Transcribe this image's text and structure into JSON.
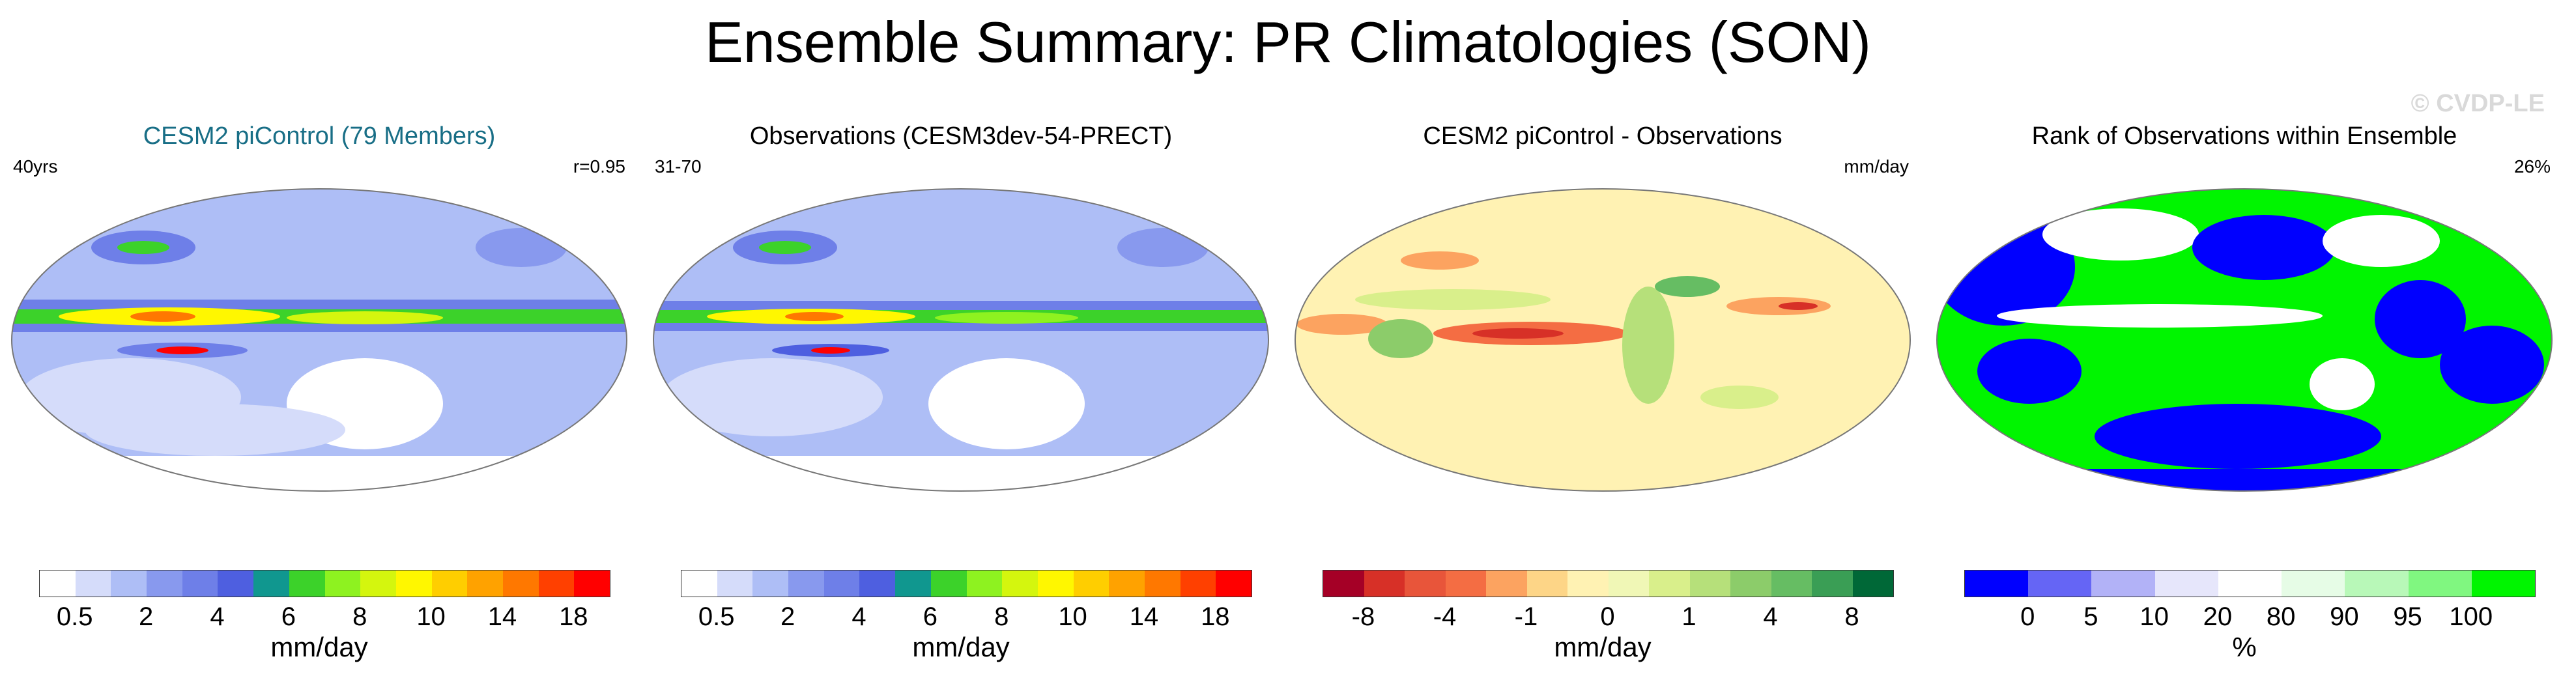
{
  "figure_title": "Ensemble Summary: PR Climatologies (SON)",
  "watermark": "© CVDP-LE",
  "panels": [
    {
      "title": "CESM2 piControl (79 Members)",
      "left_label": "40yrs",
      "right_label": "r=0.95",
      "units": "mm/day",
      "colors": [
        "#ffffff",
        "#d5dcfa",
        "#aebef6",
        "#8899ee",
        "#6e7fe8",
        "#4e5fe0",
        "#10978f",
        "#3cd22a",
        "#8ef220",
        "#d4f60e",
        "#fff700",
        "#ffce00",
        "#ffa200",
        "#ff7800",
        "#ff4000",
        "#ff0000"
      ],
      "tick_labels": [
        "0.5",
        "2",
        "4",
        "6",
        "8",
        "10",
        "14",
        "18"
      ]
    },
    {
      "title": "Observations (CESM3dev-54-PRECT)",
      "left_label": "31-70",
      "right_label": "",
      "units": "mm/day",
      "colors": [
        "#ffffff",
        "#d5dcfa",
        "#aebef6",
        "#8899ee",
        "#6e7fe8",
        "#4e5fe0",
        "#10978f",
        "#3cd22a",
        "#8ef220",
        "#d4f60e",
        "#fff700",
        "#ffce00",
        "#ffa200",
        "#ff7800",
        "#ff4000",
        "#ff0000"
      ],
      "tick_labels": [
        "0.5",
        "2",
        "4",
        "6",
        "8",
        "10",
        "14",
        "18"
      ]
    },
    {
      "title": "CESM2 piControl - Observations",
      "left_label": "",
      "right_label": "mm/day",
      "units": "mm/day",
      "colors": [
        "#a50026",
        "#d73027",
        "#e8553a",
        "#f46d43",
        "#fca360",
        "#fdd587",
        "#fff2b3",
        "#f0f7b6",
        "#d9ef8b",
        "#b6e07a",
        "#8ccc6a",
        "#66bd63",
        "#3a9e55",
        "#006837"
      ],
      "tick_labels": [
        "-8",
        "-4",
        "-1",
        "0",
        "1",
        "4",
        "8"
      ]
    },
    {
      "title": "Rank of Observations within Ensemble",
      "left_label": "",
      "right_label": "26%",
      "units": "%",
      "colors": [
        "#0000ff",
        "#6565f5",
        "#b2b2f7",
        "#e6e6fb",
        "#ffffff",
        "#e6fce6",
        "#b8f8b8",
        "#80f780",
        "#00f500"
      ],
      "tick_labels": [
        "0",
        "5",
        "10",
        "20",
        "80",
        "90",
        "95",
        "100"
      ]
    }
  ],
  "chart_data": [
    {
      "type": "heatmap",
      "title": "CESM2 piControl (79 Members)",
      "units": "mm/day",
      "colorbar_levels": [
        0.5,
        1,
        2,
        3,
        4,
        5,
        6,
        7,
        8,
        9,
        10,
        12,
        14,
        16,
        18
      ],
      "colorbar_tick_labels": [
        "0.5",
        "2",
        "4",
        "6",
        "8",
        "10",
        "14",
        "18"
      ],
      "annotations": {
        "years": "40yrs",
        "pattern_correlation": "r=0.95"
      }
    },
    {
      "type": "heatmap",
      "title": "Observations (CESM3dev-54-PRECT)",
      "units": "mm/day",
      "colorbar_levels": [
        0.5,
        1,
        2,
        3,
        4,
        5,
        6,
        7,
        8,
        9,
        10,
        12,
        14,
        16,
        18
      ],
      "colorbar_tick_labels": [
        "0.5",
        "2",
        "4",
        "6",
        "8",
        "10",
        "14",
        "18"
      ],
      "annotations": {
        "years": "31-70"
      }
    },
    {
      "type": "heatmap",
      "title": "CESM2 piControl - Observations",
      "units": "mm/day",
      "colorbar_levels": [
        -8,
        -6,
        -4,
        -2,
        -1,
        -0.5,
        0,
        0.5,
        1,
        2,
        4,
        6,
        8
      ],
      "colorbar_tick_labels": [
        "-8",
        "-4",
        "-1",
        "0",
        "1",
        "4",
        "8"
      ]
    },
    {
      "type": "heatmap",
      "title": "Rank of Observations within Ensemble",
      "units": "%",
      "colorbar_levels": [
        0,
        5,
        10,
        20,
        80,
        90,
        95,
        100
      ],
      "colorbar_tick_labels": [
        "0",
        "5",
        "10",
        "20",
        "80",
        "90",
        "95",
        "100"
      ],
      "annotations": {
        "percent_area_outside": "26%"
      }
    }
  ]
}
